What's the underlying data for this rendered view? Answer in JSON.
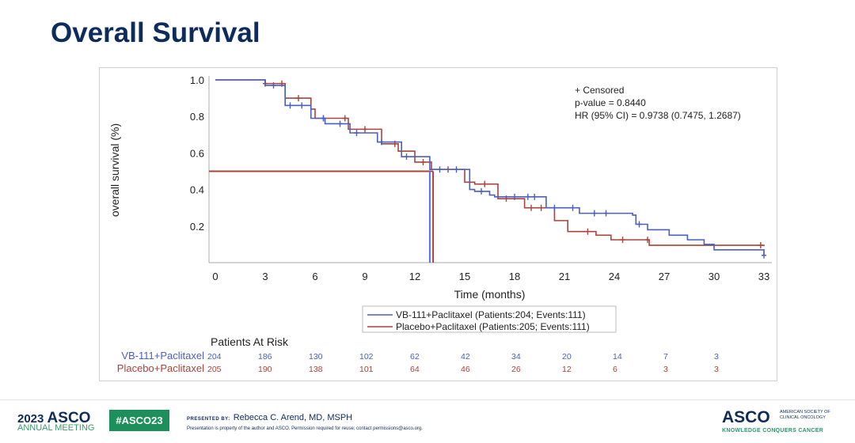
{
  "title": "Overall Survival",
  "chart_data": {
    "type": "line",
    "subtype": "kaplan-meier",
    "xlabel": "Time (months)",
    "ylabel": "overall survival (%)",
    "xlim": [
      0,
      33
    ],
    "ylim": [
      0,
      1.0
    ],
    "xticks": [
      0,
      3,
      6,
      9,
      12,
      15,
      18,
      21,
      24,
      27,
      30,
      33
    ],
    "yticks": [
      0.2,
      0.4,
      0.6,
      0.8,
      1.0
    ],
    "annotations": [
      "+ Censored",
      "p-value = 0.8440",
      "HR (95% CI) = 0.9738 (0.7475, 1.2687)"
    ],
    "median_line_y": 0.5,
    "medians": {
      "VB-111+Paclitaxel": 12.9,
      "Placebo+Paclitaxel": 13.1
    },
    "legend_placement": "bottom-center",
    "series": [
      {
        "name": "VB-111+Paclitaxel (Patients:204; Events:111)",
        "color": "#4a5fc1",
        "x": [
          0,
          1.5,
          3,
          4.2,
          5.75,
          6.6,
          8.1,
          9.75,
          11.2,
          12.9,
          15.3,
          15.6,
          16.5,
          16.8,
          19.4,
          19.9,
          21.9,
          25.1,
          25.3,
          26,
          27.3,
          28.4,
          29.4,
          30,
          33
        ],
        "y": [
          1.0,
          1.0,
          0.97,
          0.86,
          0.79,
          0.76,
          0.71,
          0.66,
          0.58,
          0.51,
          0.4,
          0.39,
          0.37,
          0.36,
          0.36,
          0.3,
          0.27,
          0.26,
          0.21,
          0.18,
          0.15,
          0.125,
          0.1,
          0.07,
          0.04
        ],
        "censored_x": [
          3.5,
          4.5,
          5.2,
          6.5,
          7.5,
          8.5,
          10,
          11.5,
          13.5,
          14.5,
          16,
          18,
          18.8,
          19.2,
          20.4,
          21.5,
          22.8,
          23.5,
          25.5,
          33
        ]
      },
      {
        "name": "Placebo+Paclitaxel (Patients:205; Events:111)",
        "color": "#a8443c",
        "x": [
          0,
          1.5,
          3,
          4.2,
          5.75,
          6,
          8,
          10,
          11,
          12,
          13,
          15,
          15.6,
          17,
          18.6,
          20.4,
          21.2,
          22.9,
          23.8,
          26.1,
          33
        ],
        "y": [
          1.0,
          1.0,
          0.98,
          0.9,
          0.84,
          0.79,
          0.73,
          0.65,
          0.61,
          0.55,
          0.51,
          0.44,
          0.43,
          0.35,
          0.3,
          0.23,
          0.17,
          0.15,
          0.125,
          0.095,
          0.09
        ],
        "censored_x": [
          3,
          4,
          5,
          6.5,
          7.8,
          9,
          10.8,
          12.5,
          14,
          16.2,
          17.5,
          19,
          19.6,
          22.4,
          24.5,
          26,
          32.8
        ]
      }
    ]
  },
  "risk_table": {
    "title": "Patients At Risk",
    "rows": [
      {
        "label": "VB-111+Paclitaxel",
        "color": "#4a5fc1",
        "values": [
          "204",
          "186",
          "130",
          "102",
          "62",
          "42",
          "34",
          "20",
          "14",
          "7",
          "3"
        ]
      },
      {
        "label": "Placebo+Paclitaxel",
        "color": "#a8443c",
        "values": [
          "205",
          "190",
          "138",
          "101",
          "64",
          "46",
          "26",
          "12",
          "6",
          "3",
          "3"
        ]
      }
    ]
  },
  "footer": {
    "year": "2023",
    "asco": "ASCO",
    "meeting": "ANNUAL MEETING",
    "hashtag": "#ASCO23",
    "presented_by": "PRESENTED BY:",
    "presenter": "Rebecca C. Arend, MD, MSPH",
    "note": "Presentation is property of the author and ASCO. Permission required for reuse; contact permissions@asco.org.",
    "org": "ASCO",
    "org_full": "AMERICAN SOCIETY OF CLINICAL ONCOLOGY",
    "tagline": "KNOWLEDGE CONQUERS CANCER"
  }
}
